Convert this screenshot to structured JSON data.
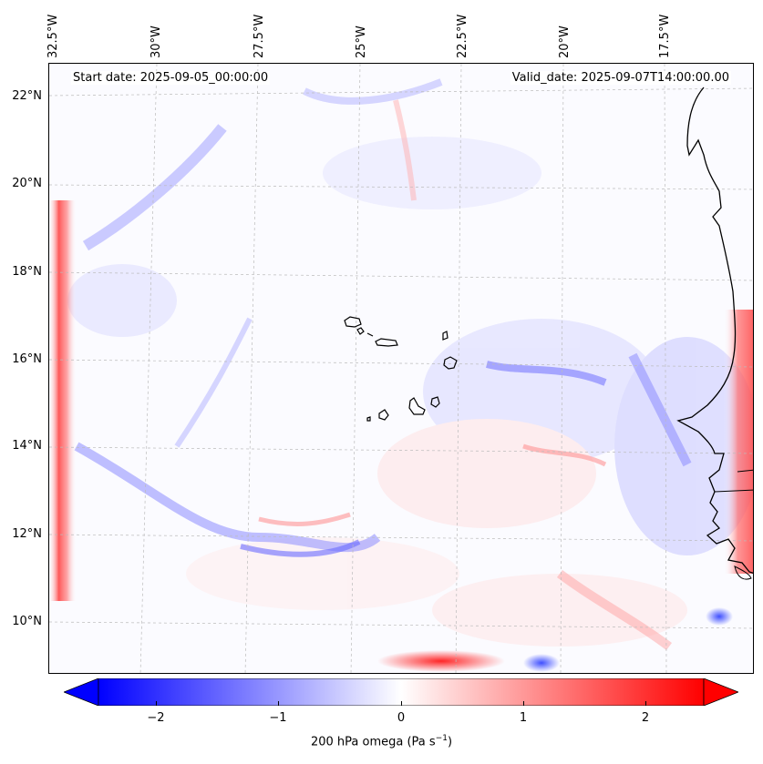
{
  "map": {
    "start_date": "Start date: 2025-09-05_00:00:00",
    "valid_date": "Valid_date: 2025-09-07T14:00:00.00",
    "lon_labels": [
      "32.5°W",
      "30°W",
      "27.5°W",
      "25°W",
      "22.5°W",
      "20°W",
      "17.5°W"
    ],
    "lat_labels": [
      "22°N",
      "20°N",
      "18°N",
      "16°N",
      "14°N",
      "12°N",
      "10°N"
    ],
    "variable": "200 hPa omega",
    "units": "Pa s",
    "units_exp": "−1",
    "colormap": "bwr",
    "colors": {
      "negative": "#0000ff",
      "zero": "#ffffff",
      "positive": "#ff0000",
      "coast": "#000000",
      "grid": "#bbbbbb"
    }
  },
  "colorbar": {
    "ticks": [
      "−2",
      "−1",
      "0",
      "1",
      "2"
    ],
    "tick_values": [
      -2,
      -1,
      0,
      1,
      2
    ],
    "range": [
      -2.7,
      2.7
    ],
    "extend": "both"
  }
}
